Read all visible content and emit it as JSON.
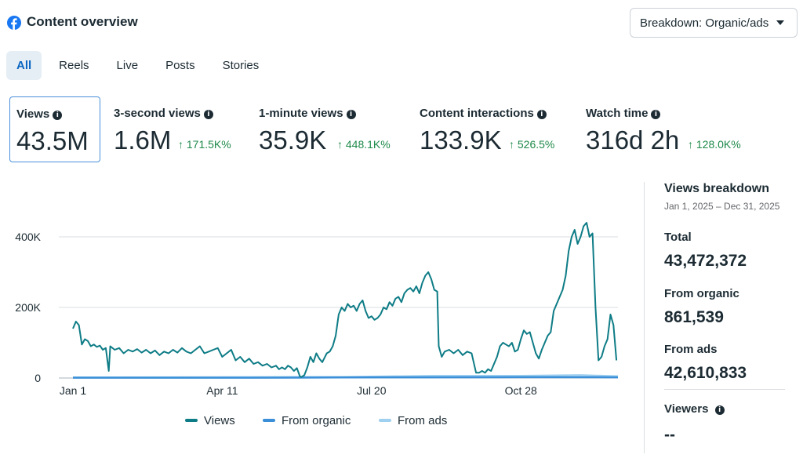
{
  "header": {
    "title": "Content overview",
    "breakdown_label": "Breakdown: Organic/ads"
  },
  "tabs": [
    {
      "label": "All",
      "active": true
    },
    {
      "label": "Reels",
      "active": false
    },
    {
      "label": "Live",
      "active": false
    },
    {
      "label": "Posts",
      "active": false
    },
    {
      "label": "Stories",
      "active": false
    }
  ],
  "metrics": [
    {
      "label": "Views",
      "value": "43.5M",
      "delta": "",
      "selected": true
    },
    {
      "label": "3-second views",
      "value": "1.6M",
      "delta": "↑ 171.5K%"
    },
    {
      "label": "1-minute views",
      "value": "35.9K",
      "delta": "↑ 448.1K%"
    },
    {
      "label": "Content interactions",
      "value": "133.9K",
      "delta": "↑ 526.5%"
    },
    {
      "label": "Watch time",
      "value": "316d 2h",
      "delta": "↑ 128.0K%"
    }
  ],
  "chart_data": {
    "type": "line",
    "y_ticks": [
      0,
      200000,
      400000
    ],
    "y_tick_labels": [
      "0",
      "200K",
      "400K"
    ],
    "x_tick_labels": [
      "Jan 1",
      "Apr 11",
      "Jul 20",
      "Oct 28"
    ],
    "x_tick_days": [
      0,
      100,
      200,
      300
    ],
    "ylim": [
      0,
      450000
    ],
    "x_days": 365,
    "series": [
      {
        "name": "Views",
        "color": "#0e7c86",
        "points": [
          [
            0,
            140000
          ],
          [
            2,
            160000
          ],
          [
            4,
            150000
          ],
          [
            6,
            95000
          ],
          [
            8,
            110000
          ],
          [
            10,
            105000
          ],
          [
            12,
            90000
          ],
          [
            14,
            95000
          ],
          [
            16,
            88000
          ],
          [
            18,
            92000
          ],
          [
            20,
            80000
          ],
          [
            22,
            85000
          ],
          [
            24,
            20000
          ],
          [
            25,
            90000
          ],
          [
            28,
            80000
          ],
          [
            31,
            85000
          ],
          [
            34,
            70000
          ],
          [
            37,
            80000
          ],
          [
            40,
            75000
          ],
          [
            43,
            82000
          ],
          [
            46,
            72000
          ],
          [
            49,
            80000
          ],
          [
            52,
            70000
          ],
          [
            55,
            78000
          ],
          [
            58,
            65000
          ],
          [
            61,
            75000
          ],
          [
            64,
            70000
          ],
          [
            67,
            80000
          ],
          [
            70,
            72000
          ],
          [
            73,
            85000
          ],
          [
            76,
            75000
          ],
          [
            79,
            70000
          ],
          [
            82,
            80000
          ],
          [
            85,
            90000
          ],
          [
            88,
            70000
          ],
          [
            91,
            75000
          ],
          [
            94,
            80000
          ],
          [
            97,
            85000
          ],
          [
            100,
            60000
          ],
          [
            103,
            70000
          ],
          [
            106,
            80000
          ],
          [
            109,
            50000
          ],
          [
            112,
            60000
          ],
          [
            115,
            45000
          ],
          [
            118,
            55000
          ],
          [
            121,
            40000
          ],
          [
            124,
            45000
          ],
          [
            127,
            35000
          ],
          [
            130,
            40000
          ],
          [
            133,
            30000
          ],
          [
            136,
            35000
          ],
          [
            138,
            25000
          ],
          [
            140,
            30000
          ],
          [
            142,
            25000
          ],
          [
            144,
            35000
          ],
          [
            146,
            30000
          ],
          [
            148,
            20000
          ],
          [
            150,
            28000
          ],
          [
            152,
            5000
          ],
          [
            153,
            3000
          ],
          [
            155,
            8000
          ],
          [
            157,
            30000
          ],
          [
            159,
            60000
          ],
          [
            161,
            45000
          ],
          [
            163,
            70000
          ],
          [
            165,
            55000
          ],
          [
            167,
            45000
          ],
          [
            170,
            70000
          ],
          [
            172,
            75000
          ],
          [
            174,
            90000
          ],
          [
            176,
            120000
          ],
          [
            178,
            180000
          ],
          [
            180,
            200000
          ],
          [
            182,
            190000
          ],
          [
            184,
            210000
          ],
          [
            186,
            200000
          ],
          [
            188,
            205000
          ],
          [
            190,
            190000
          ],
          [
            192,
            210000
          ],
          [
            194,
            220000
          ],
          [
            196,
            190000
          ],
          [
            198,
            170000
          ],
          [
            200,
            175000
          ],
          [
            202,
            165000
          ],
          [
            204,
            170000
          ],
          [
            206,
            180000
          ],
          [
            208,
            200000
          ],
          [
            210,
            195000
          ],
          [
            212,
            215000
          ],
          [
            214,
            205000
          ],
          [
            216,
            225000
          ],
          [
            218,
            230000
          ],
          [
            220,
            215000
          ],
          [
            222,
            240000
          ],
          [
            224,
            250000
          ],
          [
            226,
            255000
          ],
          [
            228,
            245000
          ],
          [
            230,
            260000
          ],
          [
            232,
            240000
          ],
          [
            234,
            270000
          ],
          [
            236,
            290000
          ],
          [
            238,
            300000
          ],
          [
            240,
            280000
          ],
          [
            242,
            250000
          ],
          [
            244,
            245000
          ],
          [
            245,
            90000
          ],
          [
            247,
            60000
          ],
          [
            249,
            75000
          ],
          [
            252,
            80000
          ],
          [
            255,
            70000
          ],
          [
            258,
            80000
          ],
          [
            261,
            65000
          ],
          [
            264,
            75000
          ],
          [
            267,
            70000
          ],
          [
            270,
            15000
          ],
          [
            272,
            15000
          ],
          [
            274,
            20000
          ],
          [
            276,
            15000
          ],
          [
            278,
            25000
          ],
          [
            280,
            20000
          ],
          [
            282,
            40000
          ],
          [
            284,
            60000
          ],
          [
            286,
            90000
          ],
          [
            288,
            100000
          ],
          [
            290,
            95000
          ],
          [
            292,
            90000
          ],
          [
            294,
            100000
          ],
          [
            296,
            75000
          ],
          [
            298,
            80000
          ],
          [
            300,
            110000
          ],
          [
            302,
            135000
          ],
          [
            304,
            125000
          ],
          [
            306,
            130000
          ],
          [
            308,
            100000
          ],
          [
            310,
            70000
          ],
          [
            312,
            55000
          ],
          [
            314,
            80000
          ],
          [
            316,
            100000
          ],
          [
            318,
            120000
          ],
          [
            320,
            130000
          ],
          [
            322,
            190000
          ],
          [
            324,
            210000
          ],
          [
            326,
            230000
          ],
          [
            328,
            250000
          ],
          [
            330,
            290000
          ],
          [
            332,
            360000
          ],
          [
            334,
            400000
          ],
          [
            336,
            420000
          ],
          [
            338,
            380000
          ],
          [
            340,
            400000
          ],
          [
            342,
            430000
          ],
          [
            344,
            440000
          ],
          [
            346,
            400000
          ],
          [
            348,
            410000
          ],
          [
            350,
            200000
          ],
          [
            352,
            50000
          ],
          [
            354,
            60000
          ],
          [
            356,
            90000
          ],
          [
            358,
            110000
          ],
          [
            360,
            180000
          ],
          [
            362,
            150000
          ],
          [
            364,
            50000
          ]
        ]
      },
      {
        "name": "From organic",
        "color": "#3b8fd8",
        "points": [
          [
            0,
            800
          ],
          [
            60,
            900
          ],
          [
            120,
            900
          ],
          [
            180,
            1500
          ],
          [
            240,
            2000
          ],
          [
            300,
            2500
          ],
          [
            365,
            2000
          ]
        ]
      },
      {
        "name": "From ads",
        "color": "#9fd0f0",
        "points": [
          [
            0,
            1500
          ],
          [
            60,
            2000
          ],
          [
            120,
            2500
          ],
          [
            180,
            3000
          ],
          [
            240,
            6000
          ],
          [
            300,
            6000
          ],
          [
            340,
            8000
          ],
          [
            365,
            5000
          ]
        ]
      }
    ]
  },
  "legend": [
    {
      "name": "Views",
      "color": "#0e7c86"
    },
    {
      "name": "From organic",
      "color": "#3b8fd8"
    },
    {
      "name": "From ads",
      "color": "#9fd0f0"
    }
  ],
  "breakdown": {
    "heading": "Views breakdown",
    "date_range": "Jan 1, 2025 – Dec 31, 2025",
    "total_label": "Total",
    "total_value": "43,472,372",
    "organic_label": "From organic",
    "organic_value": "861,539",
    "ads_label": "From ads",
    "ads_value": "42,610,833",
    "viewers_label": "Viewers",
    "viewers_value": "--"
  }
}
